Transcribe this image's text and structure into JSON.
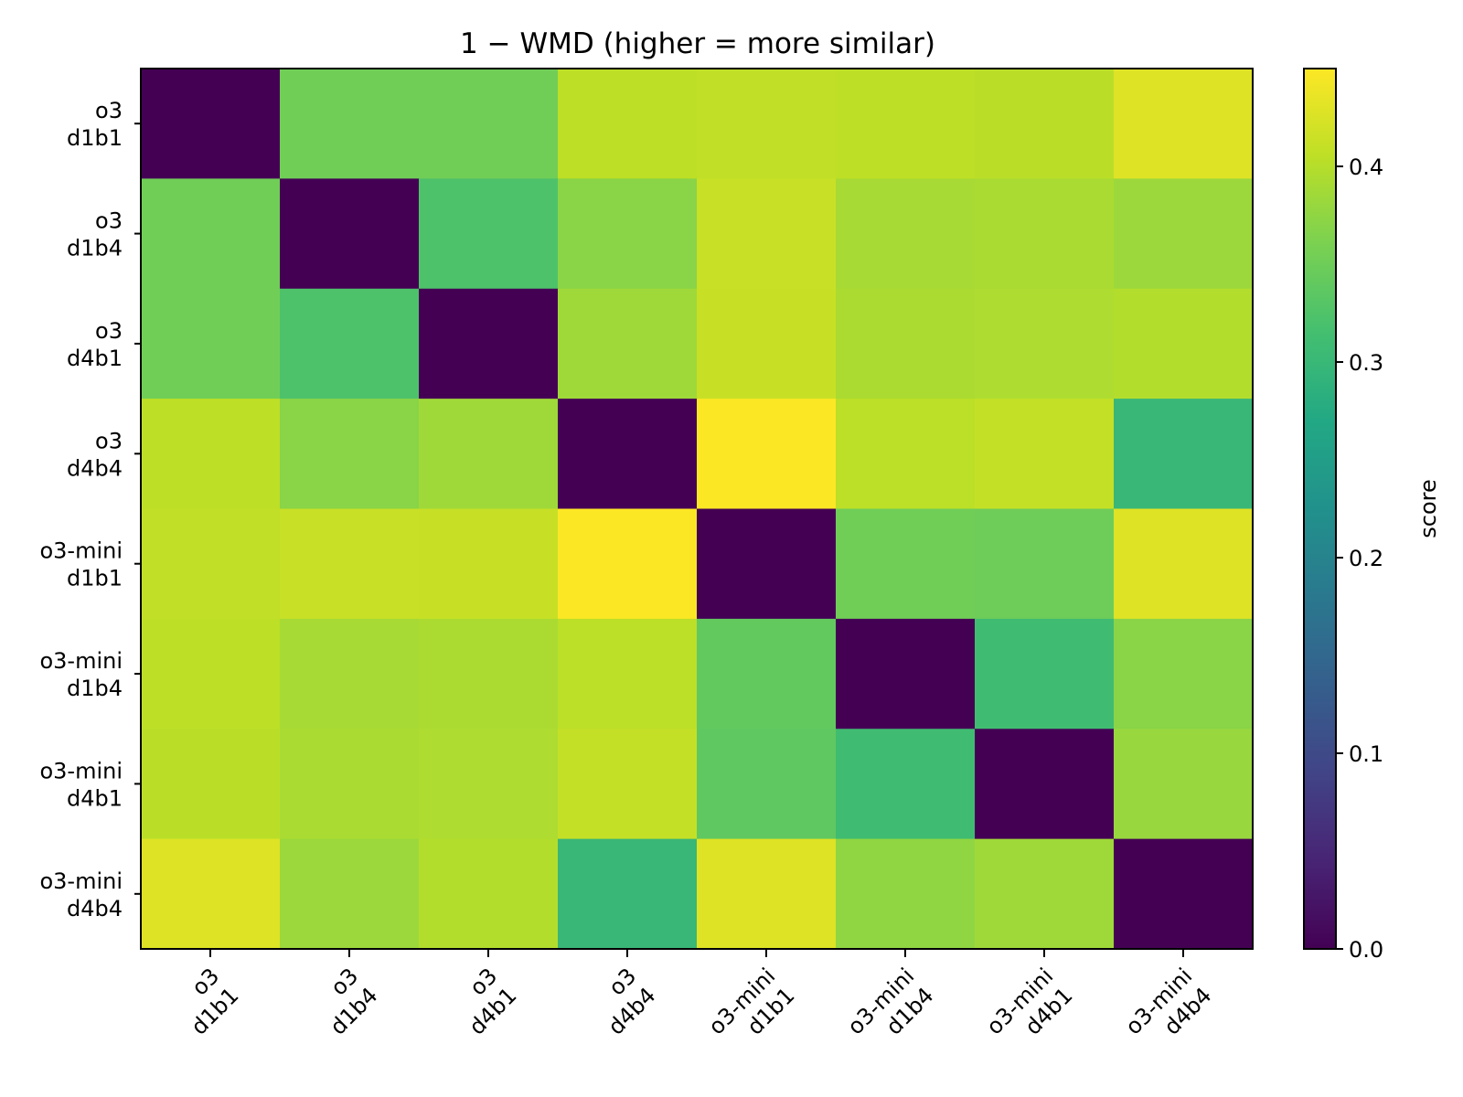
{
  "chart_data": {
    "type": "heatmap",
    "title": "1 − WMD (higher = more similar)",
    "row_labels": [
      [
        "o3",
        "d1b1"
      ],
      [
        "o3",
        "d1b4"
      ],
      [
        "o3",
        "d4b1"
      ],
      [
        "o3",
        "d4b4"
      ],
      [
        "o3-mini",
        "d1b1"
      ],
      [
        "o3-mini",
        "d1b4"
      ],
      [
        "o3-mini",
        "d4b1"
      ],
      [
        "o3-mini",
        "d4b4"
      ]
    ],
    "col_labels": [
      [
        "o3",
        "d1b1"
      ],
      [
        "o3",
        "d1b4"
      ],
      [
        "o3",
        "d4b1"
      ],
      [
        "o3",
        "d4b4"
      ],
      [
        "o3-mini",
        "d1b1"
      ],
      [
        "o3-mini",
        "d1b4"
      ],
      [
        "o3-mini",
        "d4b1"
      ],
      [
        "o3-mini",
        "d4b4"
      ]
    ],
    "values": [
      [
        0.0,
        0.352,
        0.352,
        0.405,
        0.407,
        0.405,
        0.403,
        0.428
      ],
      [
        0.352,
        0.0,
        0.323,
        0.37,
        0.413,
        0.39,
        0.392,
        0.383
      ],
      [
        0.352,
        0.323,
        0.0,
        0.385,
        0.412,
        0.393,
        0.395,
        0.398
      ],
      [
        0.405,
        0.37,
        0.385,
        0.0,
        0.449,
        0.404,
        0.41,
        0.3
      ],
      [
        0.407,
        0.413,
        0.412,
        0.449,
        0.0,
        0.352,
        0.35,
        0.428
      ],
      [
        0.405,
        0.39,
        0.393,
        0.404,
        0.34,
        0.0,
        0.31,
        0.37
      ],
      [
        0.403,
        0.392,
        0.395,
        0.41,
        0.338,
        0.31,
        0.0,
        0.38
      ],
      [
        0.428,
        0.383,
        0.398,
        0.3,
        0.428,
        0.375,
        0.385,
        0.0
      ]
    ],
    "colormap": "viridis",
    "vmin": 0.0,
    "vmax": 0.45,
    "colorbar": {
      "label": "score",
      "ticks": [
        0.0,
        0.1,
        0.2,
        0.3,
        0.4
      ],
      "tick_labels": [
        "0.0",
        "0.1",
        "0.2",
        "0.3",
        "0.4"
      ]
    }
  }
}
